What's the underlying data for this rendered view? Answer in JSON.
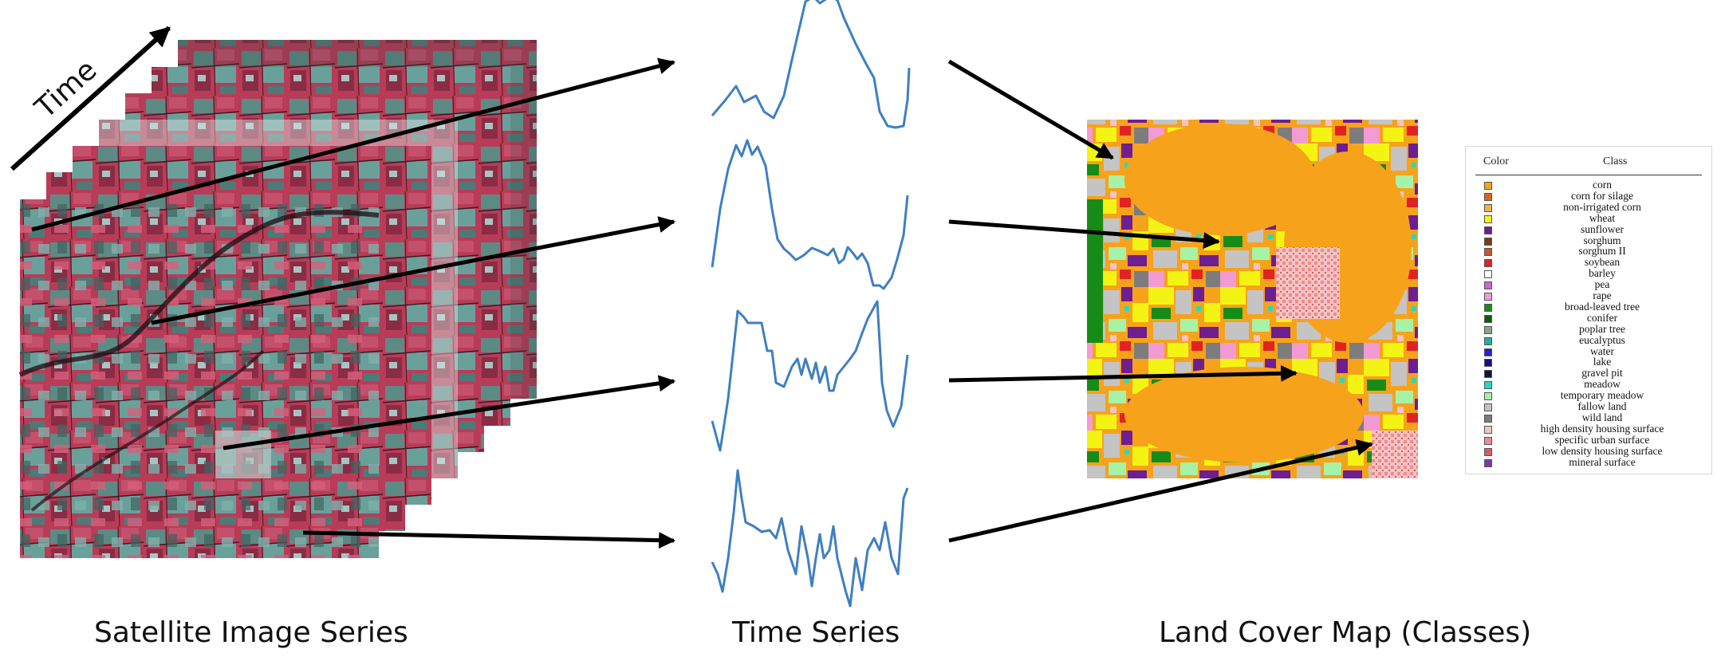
{
  "captions": {
    "time_axis": "Time",
    "satellite": "Satellite Image Series",
    "time_series": "Time Series",
    "land_cover": "Land Cover Map (Classes)"
  },
  "legend": {
    "color_header": "Color",
    "class_header": "Class",
    "items": [
      {
        "label": "corn",
        "color": "#f7a21b"
      },
      {
        "label": "corn for silage",
        "color": "#e1641c"
      },
      {
        "label": "non-irrigated corn",
        "color": "#f3b248"
      },
      {
        "label": "wheat",
        "color": "#f4f414"
      },
      {
        "label": "sunflower",
        "color": "#6e1e90"
      },
      {
        "label": "sorghum",
        "color": "#7a3a18"
      },
      {
        "label": "sorghum II",
        "color": "#c4562a"
      },
      {
        "label": "soybean",
        "color": "#e12222"
      },
      {
        "label": "barley",
        "color": "#ffffff"
      },
      {
        "label": "pea",
        "color": "#c46ad0"
      },
      {
        "label": "rape",
        "color": "#f29ad2"
      },
      {
        "label": "broad-leaved tree",
        "color": "#168c16"
      },
      {
        "label": "conifer",
        "color": "#0c5c0c"
      },
      {
        "label": "poplar tree",
        "color": "#8aa68a"
      },
      {
        "label": "eucalyptus",
        "color": "#20b0a0"
      },
      {
        "label": "water",
        "color": "#2222d0"
      },
      {
        "label": "lake",
        "color": "#10108a"
      },
      {
        "label": "gravel pit",
        "color": "#12123c"
      },
      {
        "label": "meadow",
        "color": "#22dcc0"
      },
      {
        "label": "temporary meadow",
        "color": "#a6f2a6"
      },
      {
        "label": "fallow land",
        "color": "#c4c4c4"
      },
      {
        "label": "wild land",
        "color": "#7c7c7c"
      },
      {
        "label": "high density housing surface",
        "color": "#f2c4c4"
      },
      {
        "label": "specific urban surface",
        "color": "#f28a8a"
      },
      {
        "label": "low density housing surface",
        "color": "#d85a6a"
      },
      {
        "label": "mineral surface",
        "color": "#7a3aa8"
      }
    ]
  },
  "colors": {
    "series_line": "#3f7fc0",
    "arrow": "#000000"
  }
}
